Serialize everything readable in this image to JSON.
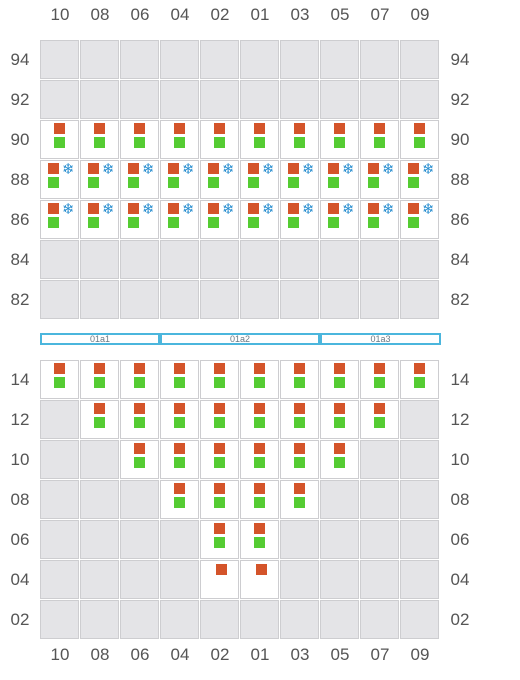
{
  "columns": [
    "10",
    "08",
    "06",
    "04",
    "02",
    "01",
    "03",
    "05",
    "07",
    "09"
  ],
  "deck_rows": [
    "94",
    "92",
    "90",
    "88",
    "86",
    "84",
    "82"
  ],
  "hold_rows": [
    "14",
    "12",
    "10",
    "08",
    "06",
    "04",
    "02"
  ],
  "bays": [
    {
      "label": "01a1"
    },
    {
      "label": "01a2"
    },
    {
      "label": "01a3"
    }
  ],
  "colors": {
    "container": "#d4542a",
    "status": "#55cc33",
    "reefer": "#2a8fd0",
    "bay_frame": "#4bb6dd"
  },
  "deck_cells": {
    "90": "all-standard",
    "88": "all-reefer",
    "86": "all-reefer",
    "94": "empty",
    "92": "empty",
    "84": "empty",
    "82": "empty"
  },
  "hold_cells": {
    "14": [
      "10",
      "08",
      "06",
      "04",
      "02",
      "01",
      "03",
      "05",
      "07",
      "09"
    ],
    "12": [
      "08",
      "06",
      "04",
      "02",
      "01",
      "03",
      "05",
      "07"
    ],
    "10": [
      "06",
      "04",
      "02",
      "01",
      "03",
      "05"
    ],
    "08": [
      "04",
      "02",
      "01",
      "03"
    ],
    "06": [
      "02",
      "01"
    ],
    "04": [
      "02",
      "01"
    ],
    "02": []
  },
  "hold_orange_only_row": "04"
}
